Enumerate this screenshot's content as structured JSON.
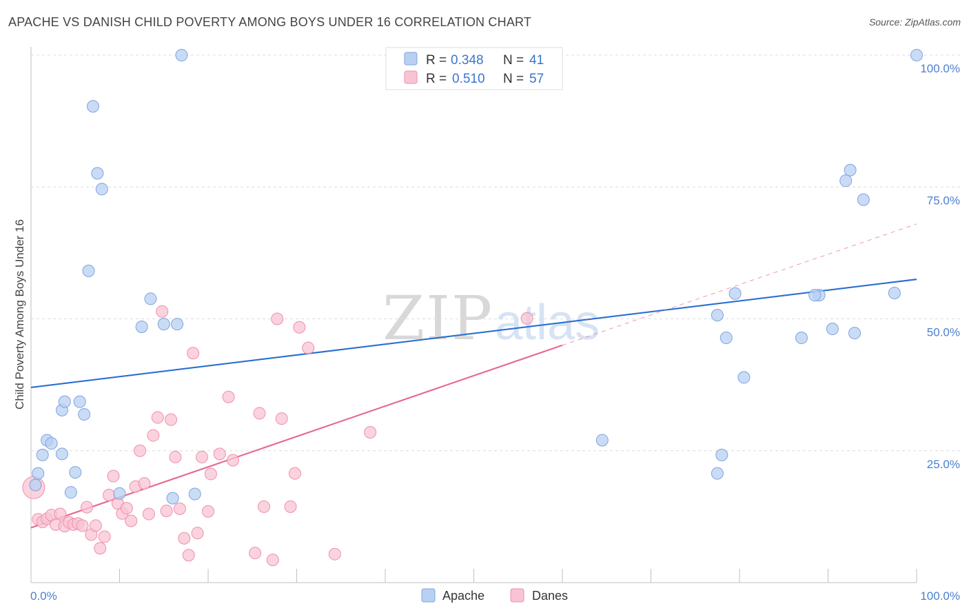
{
  "title": "APACHE VS DANISH CHILD POVERTY AMONG BOYS UNDER 16 CORRELATION CHART",
  "source": "Source: ZipAtlas.com",
  "watermark": "ZIPatlas",
  "colors": {
    "apache_fill": "#b8d0f2",
    "apache_stroke": "#7ca3e0",
    "apache_line": "#2a6fcf",
    "danes_fill": "#f8c4d3",
    "danes_stroke": "#ee8fab",
    "danes_line": "#e56b95",
    "axis_text": "#4a7fd0",
    "grid": "#dcdcdc"
  },
  "legend": {
    "rows": [
      {
        "r_label": "R =",
        "r_value": "0.348",
        "n_label": "N =",
        "n_value": "41"
      },
      {
        "r_label": "R =",
        "r_value": "0.510",
        "n_label": "N =",
        "n_value": "57"
      }
    ]
  },
  "bottom_legend": [
    "Apache",
    "Danes"
  ],
  "chart_data": {
    "type": "scatter",
    "title": "APACHE VS DANISH CHILD POVERTY AMONG BOYS UNDER 16 CORRELATION CHART",
    "xlabel": "",
    "ylabel": "Child Poverty Among Boys Under 16",
    "xlim": [
      0,
      100
    ],
    "ylim": [
      0,
      100
    ],
    "x_tick_labels": [
      "0.0%",
      "100.0%"
    ],
    "y_tick_labels": [
      "25.0%",
      "50.0%",
      "75.0%",
      "100.0%"
    ],
    "y_ticks": [
      25,
      50,
      75,
      100
    ],
    "grid": true,
    "legend_position": "top-center",
    "series": [
      {
        "name": "Apache",
        "r": 0.348,
        "n": 41,
        "trend": {
          "x0": 0,
          "y0": 37.0,
          "x1": 100,
          "y1": 57.5
        },
        "points": [
          [
            17,
            100
          ],
          [
            7,
            90.3
          ],
          [
            7.5,
            77.6
          ],
          [
            8,
            74.6
          ],
          [
            6.5,
            59.1
          ],
          [
            13.5,
            53.8
          ],
          [
            12.5,
            48.5
          ],
          [
            15,
            49.0
          ],
          [
            16.5,
            49.0
          ],
          [
            3.5,
            32.7
          ],
          [
            3.8,
            34.3
          ],
          [
            5.5,
            34.3
          ],
          [
            6,
            31.9
          ],
          [
            1.8,
            27.0
          ],
          [
            2.3,
            26.4
          ],
          [
            1.3,
            24.2
          ],
          [
            3.5,
            24.4
          ],
          [
            0.8,
            20.7
          ],
          [
            5,
            20.9
          ],
          [
            4.5,
            17.1
          ],
          [
            10,
            16.9
          ],
          [
            16,
            16.0
          ],
          [
            18.5,
            16.8
          ],
          [
            0.5,
            18.5
          ],
          [
            64.5,
            27.0
          ],
          [
            77.5,
            20.7
          ],
          [
            78,
            24.2
          ],
          [
            80.5,
            38.9
          ],
          [
            78.5,
            46.4
          ],
          [
            77.5,
            50.7
          ],
          [
            79.5,
            54.8
          ],
          [
            87,
            46.4
          ],
          [
            89,
            54.5
          ],
          [
            88.5,
            54.5
          ],
          [
            90.5,
            48.1
          ],
          [
            93,
            47.3
          ],
          [
            92.5,
            78.2
          ],
          [
            92,
            76.2
          ],
          [
            94,
            72.6
          ],
          [
            97.5,
            54.9
          ],
          [
            100,
            100
          ]
        ]
      },
      {
        "name": "Danes",
        "r": 0.51,
        "n": 57,
        "trend_solid": {
          "x0": 0,
          "y0": 10.4,
          "x1": 60,
          "y1": 45.0
        },
        "trend_dashed": {
          "x0": 60,
          "y0": 45.0,
          "x1": 100,
          "y1": 68.0
        },
        "points": [
          [
            0.3,
            18.0
          ],
          [
            0.8,
            12.0
          ],
          [
            1.3,
            11.5
          ],
          [
            1.8,
            12.1
          ],
          [
            2.3,
            12.8
          ],
          [
            2.8,
            11.0
          ],
          [
            3.3,
            13.0
          ],
          [
            3.8,
            10.7
          ],
          [
            4.3,
            11.4
          ],
          [
            4.8,
            11.0
          ],
          [
            5.3,
            11.2
          ],
          [
            5.8,
            10.8
          ],
          [
            6.3,
            14.3
          ],
          [
            6.8,
            9.1
          ],
          [
            7.3,
            10.8
          ],
          [
            7.8,
            6.5
          ],
          [
            8.3,
            8.7
          ],
          [
            8.8,
            16.6
          ],
          [
            9.3,
            20.2
          ],
          [
            9.8,
            15.0
          ],
          [
            10.3,
            13.1
          ],
          [
            10.8,
            14.1
          ],
          [
            11.3,
            11.7
          ],
          [
            11.8,
            18.2
          ],
          [
            12.3,
            25.0
          ],
          [
            12.8,
            18.8
          ],
          [
            13.3,
            13.0
          ],
          [
            13.8,
            27.9
          ],
          [
            14.3,
            31.3
          ],
          [
            14.8,
            51.4
          ],
          [
            15.3,
            13.6
          ],
          [
            15.8,
            30.9
          ],
          [
            16.3,
            23.8
          ],
          [
            16.8,
            14.0
          ],
          [
            17.3,
            8.4
          ],
          [
            17.8,
            5.2
          ],
          [
            18.3,
            43.5
          ],
          [
            18.8,
            9.4
          ],
          [
            19.3,
            23.8
          ],
          [
            20.0,
            13.5
          ],
          [
            20.3,
            20.6
          ],
          [
            21.3,
            24.4
          ],
          [
            22.3,
            35.2
          ],
          [
            22.8,
            23.2
          ],
          [
            25.3,
            5.6
          ],
          [
            25.8,
            32.1
          ],
          [
            26.3,
            14.4
          ],
          [
            27.3,
            4.3
          ],
          [
            27.8,
            50.0
          ],
          [
            28.3,
            31.1
          ],
          [
            29.3,
            14.4
          ],
          [
            29.8,
            20.7
          ],
          [
            30.3,
            48.4
          ],
          [
            31.3,
            44.5
          ],
          [
            34.3,
            5.4
          ],
          [
            38.3,
            28.5
          ],
          [
            56.0,
            50.1
          ]
        ]
      }
    ]
  }
}
